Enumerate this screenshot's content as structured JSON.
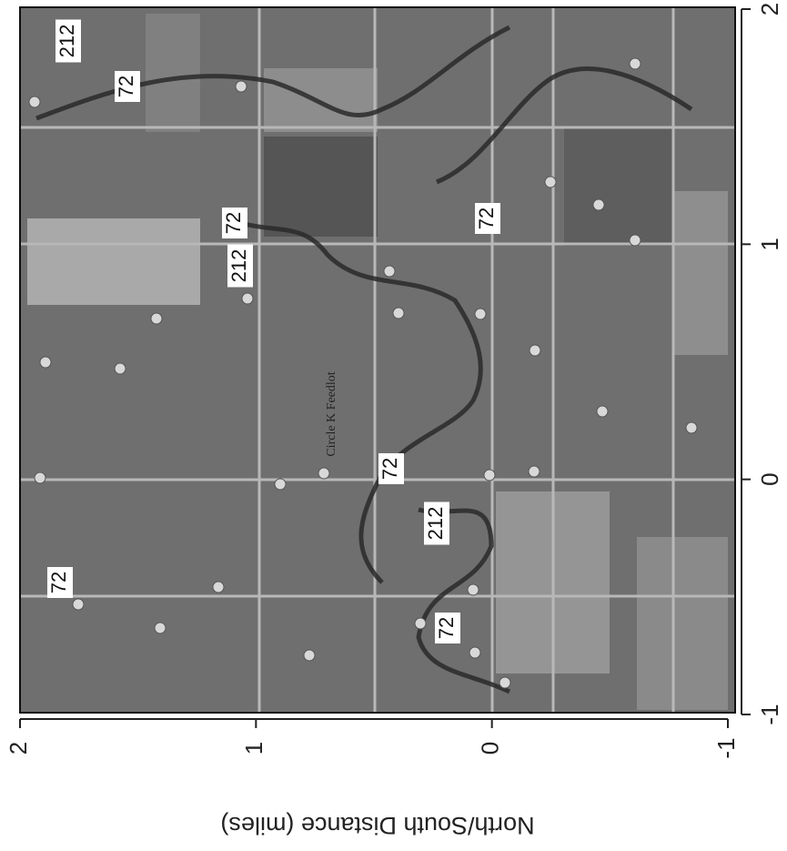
{
  "map": {
    "axis_title": "North/South Distance (miles)",
    "feature_label": "Circle K Feedlot",
    "bottom_axis": {
      "lim": [
        2,
        -1
      ],
      "ticks": [
        2,
        1,
        0,
        -1
      ]
    },
    "right_axis": {
      "lim": [
        -1,
        2
      ],
      "ticks": [
        -1,
        0,
        1,
        2
      ]
    },
    "contour_labels": [
      212,
      72,
      72,
      72,
      212,
      72,
      72,
      212,
      72
    ]
  }
}
